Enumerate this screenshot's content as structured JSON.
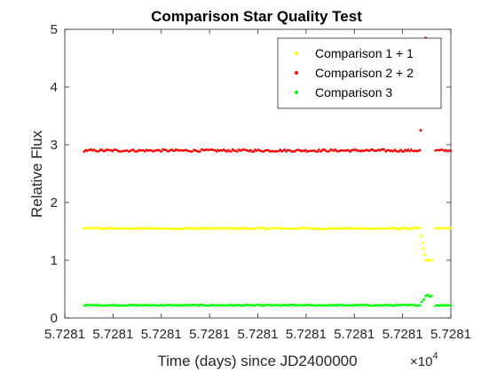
{
  "chart_data": {
    "type": "scatter",
    "title": "Comparison Star Quality Test",
    "xlabel": "Time (days) since JD2400000",
    "ylabel": "Relative Flux",
    "x_exponent_base": "×10",
    "x_exponent_power": "4",
    "x_tick_labels": [
      "5.7281",
      "5.7281",
      "5.7281",
      "5.7281",
      "5.7281",
      "5.7281",
      "5.7281",
      "5.7281",
      "5.7281"
    ],
    "y_ticks": [
      0,
      1,
      2,
      3,
      4,
      5
    ],
    "y_tick_labels": [
      "0",
      "1",
      "2",
      "3",
      "4",
      "5"
    ],
    "ylim": [
      0,
      5
    ],
    "grid": false,
    "legend_position": "top-right",
    "series": [
      {
        "name": "Comparison 1 + 1",
        "color": "#ffff00",
        "base": 1.55,
        "noise": 0.015,
        "segments": [
          [
            0.05,
            0.92
          ],
          [
            0.96,
            1.0
          ]
        ],
        "extra_points": [
          [
            0.925,
            1.42
          ],
          [
            0.928,
            1.3
          ],
          [
            0.93,
            1.2
          ],
          [
            0.933,
            1.1
          ],
          [
            0.936,
            1.0
          ],
          [
            0.94,
            1.0
          ],
          [
            0.945,
            1.0
          ],
          [
            0.95,
            1.0
          ]
        ]
      },
      {
        "name": "Comparison 2 + 2",
        "color": "#ff0000",
        "base": 2.9,
        "noise": 0.02,
        "segments": [
          [
            0.05,
            0.92
          ],
          [
            0.96,
            1.0
          ]
        ],
        "extra_points": [
          [
            0.922,
            3.25
          ],
          [
            0.935,
            4.85
          ]
        ]
      },
      {
        "name": "Comparison 3",
        "color": "#00ff00",
        "base": 0.22,
        "noise": 0.01,
        "segments": [
          [
            0.05,
            0.92
          ],
          [
            0.96,
            1.0
          ]
        ],
        "extra_points": [
          [
            0.925,
            0.28
          ],
          [
            0.93,
            0.32
          ],
          [
            0.935,
            0.38
          ],
          [
            0.94,
            0.4
          ],
          [
            0.945,
            0.37
          ],
          [
            0.95,
            0.38
          ]
        ]
      }
    ]
  }
}
